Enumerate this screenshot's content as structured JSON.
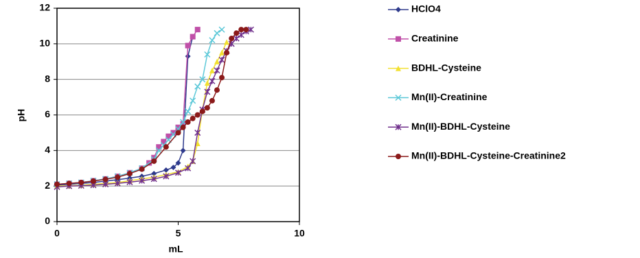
{
  "chart_data": {
    "type": "line",
    "xlabel": "mL",
    "ylabel": "pH",
    "xlim": [
      0,
      10
    ],
    "xticks": [
      0,
      5,
      10
    ],
    "ylim": [
      0,
      12
    ],
    "yticks": [
      0,
      2,
      4,
      6,
      8,
      10,
      12
    ],
    "grid": true,
    "legend": "right",
    "series": [
      {
        "name": "HClO4",
        "color": "#2e3a8c",
        "marker": "diamond",
        "x": [
          0,
          0.5,
          1,
          1.5,
          2,
          2.5,
          3,
          3.5,
          4,
          4.5,
          4.8,
          5,
          5.2,
          5.4,
          5.6
        ],
        "values": [
          2.05,
          2.1,
          2.15,
          2.2,
          2.28,
          2.36,
          2.45,
          2.55,
          2.7,
          2.9,
          3.05,
          3.3,
          4.0,
          9.3,
          10.4
        ]
      },
      {
        "name": "Creatinine",
        "color": "#c050a8",
        "marker": "square",
        "x": [
          0,
          0.5,
          1,
          1.5,
          2,
          2.5,
          3,
          3.5,
          3.8,
          4,
          4.2,
          4.4,
          4.6,
          4.8,
          5,
          5.2,
          5.4,
          5.6,
          5.8
        ],
        "values": [
          2.1,
          2.15,
          2.2,
          2.3,
          2.4,
          2.55,
          2.75,
          3.0,
          3.3,
          3.6,
          4.2,
          4.5,
          4.8,
          5.0,
          5.3,
          5.5,
          9.9,
          10.4,
          10.8
        ]
      },
      {
        "name": "BDHL-Cysteine",
        "color": "#f2e030",
        "marker": "triangle",
        "x": [
          0,
          0.5,
          1,
          1.5,
          2,
          2.5,
          3,
          3.5,
          4,
          4.5,
          5,
          5.4,
          5.6,
          5.8,
          6,
          6.2,
          6.4,
          6.6,
          6.8,
          7
        ],
        "values": [
          2.0,
          2.02,
          2.05,
          2.1,
          2.15,
          2.2,
          2.3,
          2.4,
          2.5,
          2.65,
          2.8,
          3.1,
          3.4,
          4.4,
          6.3,
          7.8,
          8.5,
          9.0,
          9.5,
          10.1
        ]
      },
      {
        "name": "Mn(II)-Creatinine",
        "color": "#5cc8d8",
        "marker": "x",
        "x": [
          0,
          0.5,
          1,
          1.5,
          2,
          2.5,
          3,
          3.5,
          4,
          4.2,
          4.4,
          4.6,
          4.8,
          5,
          5.2,
          5.4,
          5.6,
          5.8,
          6,
          6.2,
          6.4,
          6.6,
          6.8
        ],
        "values": [
          2.1,
          2.15,
          2.2,
          2.3,
          2.4,
          2.55,
          2.75,
          3.0,
          3.5,
          4.0,
          4.3,
          4.6,
          4.9,
          5.2,
          5.6,
          6.2,
          6.8,
          7.6,
          8.0,
          9.4,
          10.2,
          10.6,
          10.8
        ]
      },
      {
        "name": "Mn(II)-BDHL-Cysteine",
        "color": "#70308c",
        "marker": "star",
        "x": [
          0,
          0.5,
          1,
          1.5,
          2,
          2.5,
          3,
          3.5,
          4,
          4.5,
          5,
          5.4,
          5.6,
          5.8,
          6,
          6.2,
          6.4,
          6.6,
          6.8,
          7,
          7.2,
          7.4,
          7.6,
          7.8,
          8
        ],
        "values": [
          1.95,
          2.0,
          2.02,
          2.05,
          2.1,
          2.15,
          2.22,
          2.3,
          2.4,
          2.55,
          2.75,
          3.0,
          3.4,
          5.0,
          6.3,
          7.3,
          7.9,
          8.5,
          9.1,
          9.6,
          10.0,
          10.3,
          10.5,
          10.7,
          10.8
        ]
      },
      {
        "name": "Mn(II)-BDHL-Cysteine-Creatinine2",
        "color": "#8b1a1a",
        "marker": "circle",
        "x": [
          0,
          0.5,
          1,
          1.5,
          2,
          2.5,
          3,
          3.5,
          4,
          4.5,
          5,
          5.2,
          5.4,
          5.6,
          5.8,
          6,
          6.2,
          6.4,
          6.6,
          6.8,
          7,
          7.2,
          7.4,
          7.6,
          7.8
        ],
        "values": [
          2.1,
          2.15,
          2.2,
          2.28,
          2.38,
          2.5,
          2.7,
          2.95,
          3.4,
          4.2,
          5.0,
          5.3,
          5.6,
          5.8,
          6.0,
          6.2,
          6.4,
          6.8,
          7.4,
          8.1,
          9.5,
          10.3,
          10.6,
          10.8,
          10.8
        ]
      }
    ]
  }
}
